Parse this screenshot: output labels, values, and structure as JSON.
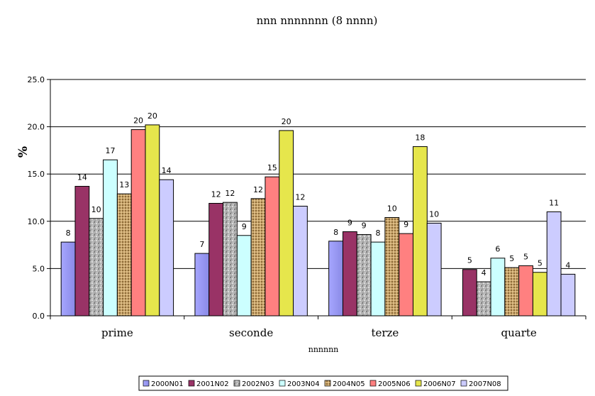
{
  "chart_data": {
    "type": "bar",
    "title": "nnn nnnnnnn (8 nnnn)",
    "xlabel": "nnnnnn",
    "ylabel": "%",
    "ylim": [
      0,
      25
    ],
    "yticks": [
      "0.0",
      "5.0",
      "10.0",
      "15.0",
      "20.0",
      "25.0"
    ],
    "grid": true,
    "legend_position": "bottom",
    "categories": [
      "prime",
      "seconde",
      "terze",
      "quarte"
    ],
    "series": [
      {
        "name": "2000N01",
        "values": [
          7.8,
          6.6,
          7.9,
          null
        ],
        "labels": [
          "8",
          "7",
          "8",
          ""
        ],
        "color": "#9999ff",
        "fill": "lavender-gradient"
      },
      {
        "name": "2001N02",
        "values": [
          13.7,
          11.9,
          8.9,
          4.9
        ],
        "labels": [
          "14",
          "12",
          "9",
          "5"
        ],
        "color": "#993366",
        "fill": "solid"
      },
      {
        "name": "2002N03",
        "values": [
          10.3,
          12.0,
          8.6,
          3.6
        ],
        "labels": [
          "10",
          "12",
          "9",
          "4"
        ],
        "color": "#a0a0a0",
        "fill": "granite-texture"
      },
      {
        "name": "2003N04",
        "values": [
          16.5,
          8.5,
          7.8,
          6.1
        ],
        "labels": [
          "17",
          "9",
          "8",
          "6"
        ],
        "color": "#ccffff",
        "fill": "solid"
      },
      {
        "name": "2004N05",
        "values": [
          12.9,
          12.4,
          10.4,
          5.1
        ],
        "labels": [
          "13",
          "12",
          "10",
          "5"
        ],
        "color": "#c8a46a",
        "fill": "burlap-texture"
      },
      {
        "name": "2005N06",
        "values": [
          19.7,
          14.7,
          8.7,
          5.3
        ],
        "labels": [
          "20",
          "15",
          "9",
          "5"
        ],
        "color": "#ff8080",
        "fill": "solid"
      },
      {
        "name": "2006N07",
        "values": [
          20.2,
          19.6,
          17.9,
          4.6
        ],
        "labels": [
          "20",
          "20",
          "18",
          "5"
        ],
        "color": "#e6e64c",
        "fill": "solid"
      },
      {
        "name": "2007N08",
        "values": [
          14.4,
          11.6,
          9.8,
          11.0
        ],
        "labels": [
          "14",
          "12",
          "10",
          "11"
        ],
        "color": "#ccccff",
        "fill": "solid"
      }
    ],
    "extra_bars": [
      {
        "category": "quarte",
        "value": 4.4,
        "label": "4",
        "color": "#ccccff"
      }
    ]
  }
}
